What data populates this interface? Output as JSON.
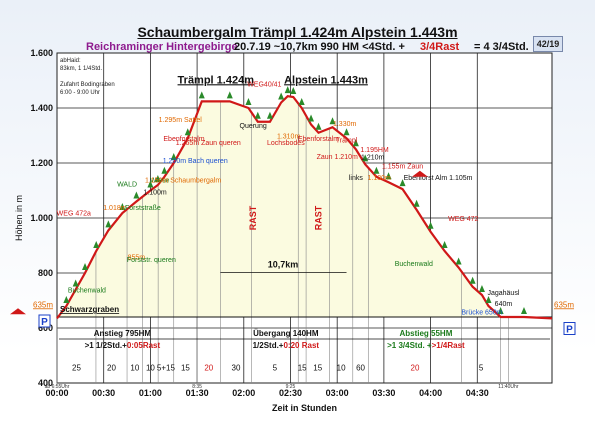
{
  "chart_data": {
    "type": "area",
    "title": "Schaumbergalm Trämpl 1.424m Alpstein 1.443m",
    "subtitle_region": "Reichraminger Hintergebirge",
    "subtitle_stats": "20.7.19   ~10,7km   990 HM   <4Std. +",
    "subtitle_rast": "3/4Rast",
    "subtitle_total": "= 4 3/4Std.",
    "badge": "42/19",
    "xlabel": "Zeit in Stunden",
    "ylabel": "Höhen in m",
    "xlim": [
      0,
      5.3
    ],
    "ylim": [
      400,
      1600
    ],
    "x_ticks": [
      0,
      0.5,
      1,
      1.5,
      2,
      2.5,
      3,
      3.5,
      4,
      4.5
    ],
    "x_tick_labels": [
      "00:00",
      "00:30",
      "01:00",
      "01:30",
      "02:00",
      "02:30",
      "03:00",
      "03:30",
      "04:00",
      "04:30"
    ],
    "y_ticks": [
      400,
      600,
      800,
      1000,
      1200,
      1400,
      1600
    ],
    "y_tick_labels": [
      "400",
      "600",
      "800",
      "1.000",
      "1.200",
      "1.400",
      "1.600"
    ],
    "series": [
      {
        "x": [
          0,
          0.1,
          0.2,
          0.3,
          0.42,
          0.55,
          0.7,
          0.85,
          1.0,
          1.08,
          1.15,
          1.25,
          1.4,
          1.55,
          1.85,
          2.05,
          2.15,
          2.28,
          2.4,
          2.47,
          2.53,
          2.62,
          2.72,
          2.8,
          2.95,
          3.1,
          3.2,
          3.3,
          3.42,
          3.55,
          3.7,
          3.85,
          4.0,
          4.15,
          4.3,
          4.45,
          4.55,
          4.62,
          4.75,
          5.0,
          5.3
        ],
        "y": [
          635,
          680,
          740,
          800,
          880,
          955,
          1018,
          1060,
          1100,
          1120,
          1150,
          1200,
          1290,
          1424,
          1424,
          1400,
          1350,
          1350,
          1420,
          1443,
          1440,
          1400,
          1340,
          1310,
          1330,
          1290,
          1250,
          1195,
          1150,
          1130,
          1105,
          1030,
          950,
          880,
          820,
          750,
          720,
          680,
          640,
          640,
          635
        ]
      }
    ],
    "rast_bands": [
      {
        "x": [
          2.05,
          2.15
        ],
        "label": "RAST"
      },
      {
        "x": [
          2.75,
          2.85
        ],
        "label": "RAST"
      }
    ],
    "segment_boundaries": [
      0,
      0.417,
      0.75,
      0.917,
      1.083,
      1.25,
      1.5,
      1.75,
      2.083,
      2.583,
      2.667,
      2.917,
      3.167,
      3.333,
      4.333,
      4.75,
      4.833
    ],
    "segment_minutes": [
      "25",
      "20",
      "10",
      "10",
      "5+15",
      "15",
      "20",
      "30",
      "5",
      "15",
      "15",
      "10",
      "60",
      "20",
      "5"
    ],
    "bottom_time_labels": [
      {
        "x": 0,
        "text": "ab 6:55Uhr"
      },
      {
        "x": 1.5,
        "text": "8:35"
      },
      {
        "x": 2.5,
        "text": "9:25"
      },
      {
        "x": 4.833,
        "text": "11:40Uhr"
      }
    ],
    "section_labels": [
      {
        "x": 0.7,
        "title": "Anstieg 795HM",
        "detail": ">1 1/2Std.+",
        "rast": "0:05Rast",
        "color": "#111111"
      },
      {
        "x": 2.45,
        "title": "Übergang 140HM",
        "detail": "1/2Std.+",
        "rast": "0:20 Rast",
        "color": "#111111"
      },
      {
        "x": 3.95,
        "title": "Abstieg 55HM",
        "detail": ">1 3/4Std. +",
        "rast": ">1/4Rast",
        "color": "#1a7a1a"
      }
    ],
    "distance_label": "10,7km",
    "start_label": "Schwarzgraben",
    "start_elev": "635m",
    "end_elev": "635m",
    "top_left_note": [
      "abHaid:",
      "83km, 1 1/4Std.",
      "",
      "Zufahrt Bodingraben",
      "6:00 - 9:00 Uhr"
    ],
    "peaks": [
      {
        "x": 1.7,
        "text": "Trämpl 1.424m"
      },
      {
        "x": 2.88,
        "text": "Alpstein 1.443m"
      }
    ],
    "annotations": [
      {
        "x": 0.18,
        "y": 1010,
        "text": "WEG 472a",
        "color": "#d01818"
      },
      {
        "x": 0.75,
        "y": 1115,
        "text": "WALD",
        "color": "#1a7a1a"
      },
      {
        "x": 0.62,
        "y": 1030,
        "text": "1.018m",
        "color": "#e06800"
      },
      {
        "x": 1.05,
        "y": 1085,
        "text": "1.100m",
        "color": "#111111"
      },
      {
        "x": 1.1,
        "y": 1130,
        "text": "Wiese",
        "color": "#1a7a1a"
      },
      {
        "x": 0.92,
        "y": 1030,
        "text": "Forststraße",
        "color": "#1a7a1a"
      },
      {
        "x": 0.85,
        "y": 850,
        "text": "855m",
        "color": "#e06800"
      },
      {
        "x": 1.01,
        "y": 840,
        "text": "Forststr. queren",
        "color": "#1a7a1a"
      },
      {
        "x": 0.32,
        "y": 730,
        "text": "Buchenwald",
        "color": "#1a7a1a"
      },
      {
        "x": 1.35,
        "y": 1130,
        "text": "1.150m Schaumbergalm",
        "color": "#e06800"
      },
      {
        "x": 1.48,
        "y": 1200,
        "text": "1.200m Bach queren",
        "color": "#1a4fd0"
      },
      {
        "x": 1.36,
        "y": 1280,
        "text": "Ebenforstalm",
        "color": "#d01818"
      },
      {
        "x": 1.62,
        "y": 1265,
        "text": "1.265m Zaun queren",
        "color": "#d01818"
      },
      {
        "x": 1.32,
        "y": 1350,
        "text": "1.295m Sattel",
        "color": "#e06800"
      },
      {
        "x": 2.1,
        "y": 1328,
        "text": "Querung",
        "color": "#111111"
      },
      {
        "x": 2.22,
        "y": 1478,
        "text": "WEG40/41",
        "color": "#d01818"
      },
      {
        "x": 2.48,
        "y": 1290,
        "text": "1.310m",
        "color": "#e06800"
      },
      {
        "x": 2.45,
        "y": 1265,
        "text": "Lochsbodes",
        "color": "#d01818"
      },
      {
        "x": 2.8,
        "y": 1280,
        "text": "Ebenforstalm",
        "color": "#d01818"
      },
      {
        "x": 3.08,
        "y": 1335,
        "text": "1.330m",
        "color": "#e06800"
      },
      {
        "x": 3.1,
        "y": 1275,
        "text": "Trämpl",
        "color": "#d01818"
      },
      {
        "x": 3.0,
        "y": 1215,
        "text": "Zaun 1.210m",
        "color": "#d01818"
      },
      {
        "x": 3.4,
        "y": 1240,
        "text": "1.195HM",
        "color": "#d01818"
      },
      {
        "x": 3.38,
        "y": 1212,
        "text": "1.210m",
        "color": "#111111"
      },
      {
        "x": 3.7,
        "y": 1180,
        "text": "1.155m Zaun",
        "color": "#d01818"
      },
      {
        "x": 3.2,
        "y": 1138,
        "text": "links",
        "color": "#111111"
      },
      {
        "x": 3.45,
        "y": 1138,
        "text": "1.130m",
        "color": "#e06800"
      },
      {
        "x": 4.08,
        "y": 1138,
        "text": "Ebenforst Alm 1.105m",
        "color": "#111111"
      },
      {
        "x": 4.35,
        "y": 990,
        "text": "WEG 472",
        "color": "#d01818"
      },
      {
        "x": 3.82,
        "y": 825,
        "text": "Buchenwald",
        "color": "#1a7a1a"
      },
      {
        "x": 4.55,
        "y": 650,
        "text": "Brücke 650m",
        "color": "#1a4fd0"
      },
      {
        "x": 4.78,
        "y": 720,
        "text": "Jagahäusl",
        "color": "#111111"
      },
      {
        "x": 4.78,
        "y": 680,
        "text": "640m",
        "color": "#111111"
      }
    ],
    "colors": {
      "profile": "#d01818",
      "fill": "#fbfbe0",
      "grid": "#222222",
      "segment_line": "#888888",
      "tree": "#2a8a2a",
      "flag": "#d01818",
      "parking": "#1a40c8"
    },
    "parking_label": "P"
  }
}
